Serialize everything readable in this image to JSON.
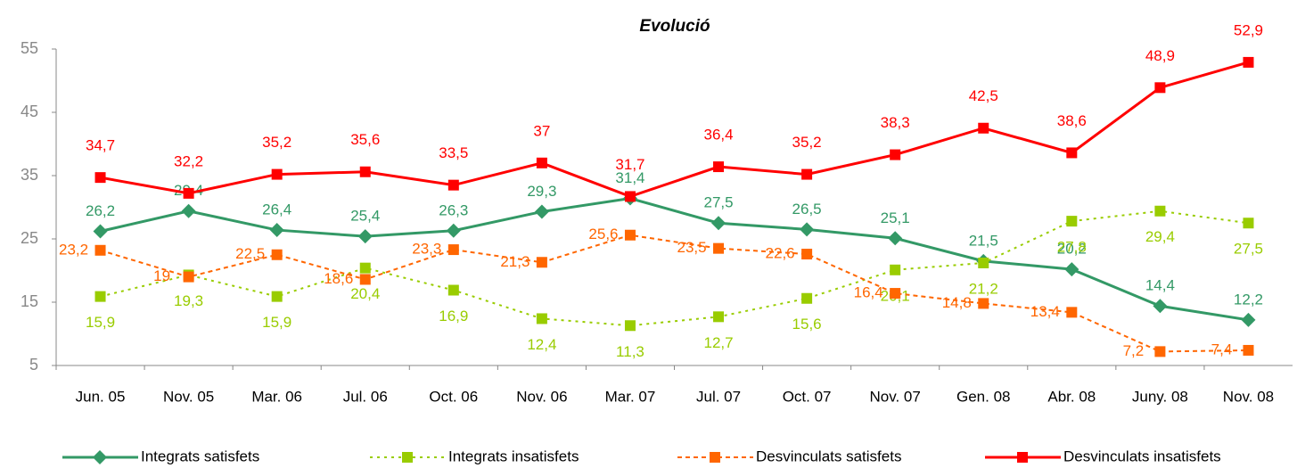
{
  "chart_data": {
    "type": "line",
    "title": "Evolució",
    "categories": [
      "Jun. 05",
      "Nov. 05",
      "Mar. 06",
      "Jul. 06",
      "Oct. 06",
      "Nov. 06",
      "Mar. 07",
      "Jul. 07",
      "Oct. 07",
      "Nov. 07",
      "Gen. 08",
      "Abr. 08",
      "Juny. 08",
      "Nov. 08"
    ],
    "ylim": [
      5,
      55
    ],
    "yticks": [
      5,
      15,
      25,
      35,
      45,
      55
    ],
    "grid": false,
    "legend": "bottom",
    "series": [
      {
        "name": "Integrats satisfets",
        "color": "#339966",
        "marker": "diamond",
        "dash": "solid",
        "values": [
          26.2,
          29.4,
          26.4,
          25.4,
          26.3,
          29.3,
          31.4,
          27.5,
          26.5,
          25.1,
          21.5,
          20.2,
          14.4,
          12.2
        ],
        "value_labels": [
          "26,2",
          "29,4",
          "26,4",
          "25,4",
          "26,3",
          "29,3",
          "31,4",
          "27,5",
          "26,5",
          "25,1",
          "21,5",
          "20,2",
          "14,4",
          "12,2"
        ]
      },
      {
        "name": "Integrats insatisfets",
        "color": "#99cc00",
        "marker": "square",
        "dash": "dotted",
        "values": [
          15.9,
          19.3,
          15.9,
          20.4,
          16.9,
          12.4,
          11.3,
          12.7,
          15.6,
          20.1,
          21.2,
          27.8,
          29.4,
          27.5
        ],
        "value_labels": [
          "15,9",
          "19,3",
          "15,9",
          "20,4",
          "16,9",
          "12,4",
          "11,3",
          "12,7",
          "15,6",
          "20,1",
          "21,2",
          "27,8",
          "29,4",
          "27,5"
        ]
      },
      {
        "name": "Desvinculats satisfets",
        "color": "#ff6600",
        "marker": "square",
        "dash": "dashed",
        "values": [
          23.2,
          19,
          22.5,
          18.6,
          23.3,
          21.3,
          25.6,
          23.5,
          22.6,
          16.4,
          14.8,
          13.4,
          7.2,
          7.4
        ],
        "value_labels": [
          "23,2",
          "19",
          "22,5",
          "18,6",
          "23,3",
          "21,3",
          "25,6",
          "23,5",
          "22,6",
          "16,4",
          "14,8",
          "13,4",
          "7,2",
          "7,4"
        ]
      },
      {
        "name": "Desvinculats insatisfets",
        "color": "#ff0000",
        "marker": "square",
        "dash": "solid",
        "values": [
          34.7,
          32.2,
          35.2,
          35.6,
          33.5,
          37,
          31.7,
          36.4,
          35.2,
          38.3,
          42.5,
          38.6,
          48.9,
          52.9
        ],
        "value_labels": [
          "34,7",
          "32,2",
          "35,2",
          "35,6",
          "33,5",
          "37",
          "31,7",
          "36,4",
          "35,2",
          "38,3",
          "42,5",
          "38,6",
          "48,9",
          "52,9"
        ]
      }
    ]
  }
}
